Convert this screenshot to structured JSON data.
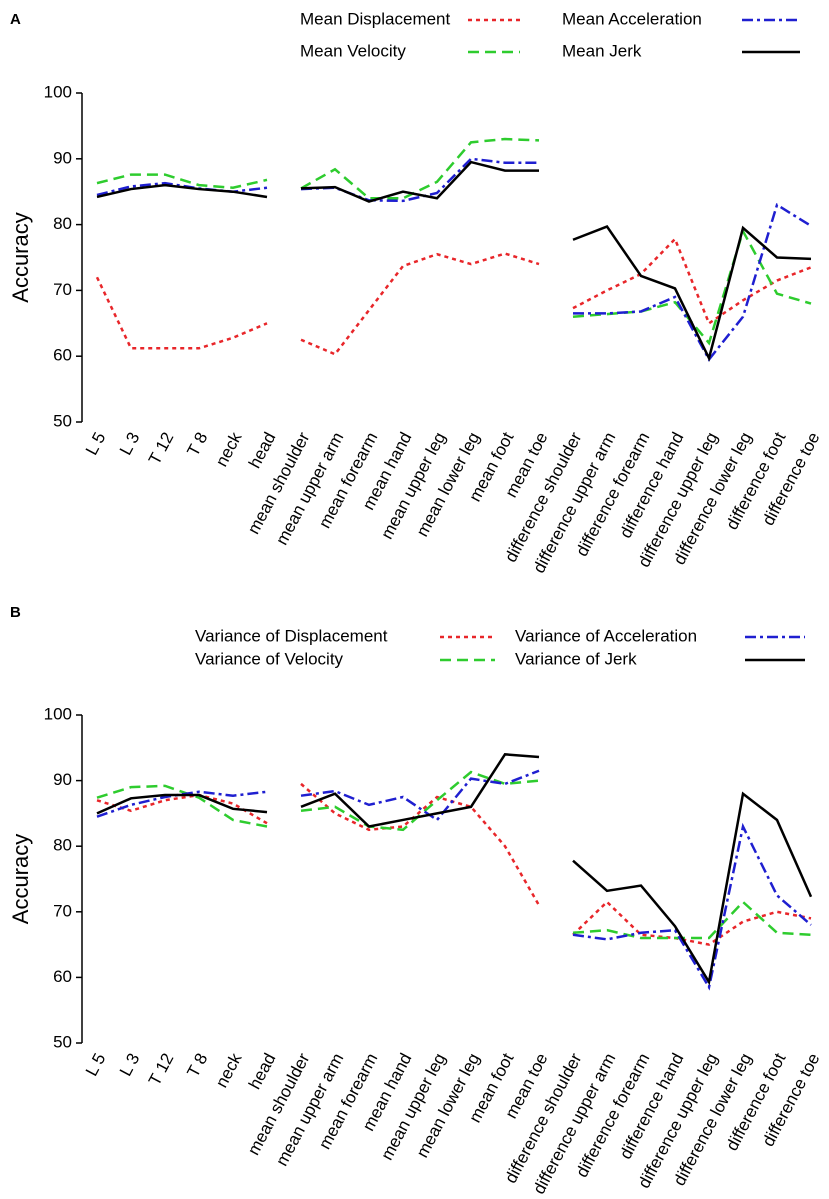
{
  "chart_data": [
    {
      "type": "line",
      "panel": "A",
      "ylabel": "Accuracy",
      "categories": [
        "L 5",
        "L 3",
        "T 12",
        "T 8",
        "neck",
        "head",
        "mean shoulder",
        "mean upper arm",
        "mean forearm",
        "mean hand",
        "mean upper leg",
        "mean lower leg",
        "mean foot",
        "mean toe",
        "difference shoulder",
        "difference upper arm",
        "difference forearm",
        "difference hand",
        "difference upper leg",
        "difference lower leg",
        "difference foot",
        "difference toe"
      ],
      "ylim": [
        50,
        100
      ],
      "yticks": [
        50,
        60,
        70,
        80,
        90,
        100
      ],
      "series": [
        {
          "name": "Mean Displacement",
          "color": "#e8262a",
          "values": [
            72,
            61.2,
            61.2,
            61.2,
            62.8,
            65,
            62.5,
            60.3,
            67,
            73.7,
            75.5,
            74,
            75.6,
            74,
            67.3,
            70,
            72.5,
            77.8,
            65,
            68.5,
            71.5,
            73.5
          ]
        },
        {
          "name": "Mean Velocity",
          "color": "#2ecc2e",
          "values": [
            86.3,
            87.6,
            87.6,
            86,
            85.6,
            86.8,
            85.5,
            88.4,
            84,
            84,
            86.5,
            92.5,
            93,
            92.8,
            66,
            66.4,
            66.8,
            68.2,
            62,
            79,
            69.5,
            68
          ]
        },
        {
          "name": "Mean Acceleration",
          "color": "#1f1fd0",
          "values": [
            84.5,
            85.8,
            86.3,
            85.5,
            85,
            85.6,
            85.4,
            85.6,
            83.7,
            83.6,
            84.8,
            90,
            89.4,
            89.4,
            66.5,
            66.5,
            66.8,
            69,
            59.5,
            66,
            83,
            79.8
          ]
        },
        {
          "name": "Mean Jerk",
          "color": "#000000",
          "values": [
            84.2,
            85.4,
            86,
            85.4,
            85,
            84.2,
            85.5,
            85.7,
            83.5,
            85,
            84,
            89.5,
            88.2,
            88.2,
            77.7,
            79.7,
            72.2,
            70.3,
            59.7,
            79.5,
            75,
            74.8
          ]
        }
      ]
    },
    {
      "type": "line",
      "panel": "B",
      "ylabel": "Accuracy",
      "categories": [
        "L 5",
        "L 3",
        "T 12",
        "T 8",
        "neck",
        "head",
        "mean shoulder",
        "mean upper arm",
        "mean forearm",
        "mean hand",
        "mean upper leg",
        "mean lower leg",
        "mean foot",
        "mean toe",
        "difference shoulder",
        "difference upper arm",
        "difference forearm",
        "difference hand",
        "difference upper leg",
        "difference lower leg",
        "difference foot",
        "difference toe"
      ],
      "ylim": [
        50,
        100
      ],
      "yticks": [
        50,
        60,
        70,
        80,
        90,
        100
      ],
      "series": [
        {
          "name": "Variance of Displacement",
          "color": "#e8262a",
          "values": [
            87,
            85.4,
            87,
            87.8,
            86.5,
            83.5,
            89.5,
            85,
            82.5,
            83,
            87.5,
            86,
            80,
            71,
            66.5,
            71.5,
            66.5,
            66,
            65,
            68.5,
            70,
            69
          ]
        },
        {
          "name": "Variance of Velocity",
          "color": "#2ecc2e",
          "values": [
            87.4,
            89,
            89.2,
            87.4,
            84,
            83,
            85.4,
            86,
            83,
            82.5,
            87,
            91.3,
            89.5,
            90,
            66.8,
            67.2,
            66,
            66,
            66,
            71.5,
            66.8,
            66.5
          ]
        },
        {
          "name": "Variance of Acceleration",
          "color": "#1f1fd0",
          "values": [
            84.5,
            86.3,
            87.5,
            88.3,
            87.7,
            88.3,
            87.7,
            88.4,
            86.3,
            87.5,
            84,
            90.3,
            89.5,
            91.5,
            66.5,
            65.8,
            66.8,
            67.2,
            58.5,
            83,
            72.5,
            68
          ]
        },
        {
          "name": "Variance of Jerk",
          "color": "#000000",
          "values": [
            85,
            87.3,
            87.8,
            87.8,
            85.7,
            85.2,
            86,
            88,
            83,
            84,
            85,
            86,
            94,
            93.6,
            77.8,
            73.2,
            74,
            67.8,
            59.3,
            88,
            84,
            72.3
          ]
        }
      ]
    }
  ]
}
